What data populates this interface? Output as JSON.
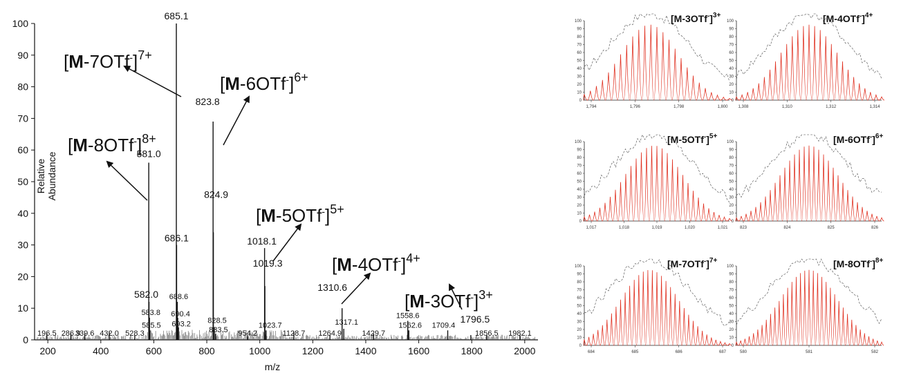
{
  "chart_data": [
    {
      "type": "line",
      "subtype": "mass-spectrum",
      "title": "",
      "xlabel": "m/z",
      "ylabel": "Relative Abundance",
      "xlim": [
        150,
        2050
      ],
      "ylim": [
        0,
        100
      ],
      "xticks": [
        200,
        400,
        600,
        800,
        1000,
        1200,
        1400,
        1600,
        1800,
        2000
      ],
      "yticks": [
        0,
        10,
        20,
        30,
        40,
        50,
        60,
        70,
        80,
        90,
        100
      ],
      "series": [
        {
          "peaks": [
            {
              "mz": 196.5,
              "intensity": 2,
              "label": "196.5"
            },
            {
              "mz": 286.9,
              "intensity": 2,
              "label": "286.9"
            },
            {
              "mz": 339.6,
              "intensity": 2,
              "label": "339.6"
            },
            {
              "mz": 432.0,
              "intensity": 2.5,
              "label": "432.0"
            },
            {
              "mz": 528.3,
              "intensity": 1.5,
              "label": "528.3"
            },
            {
              "mz": 581.0,
              "intensity": 56,
              "label": "581.0"
            },
            {
              "mz": 582.0,
              "intensity": 12,
              "label": "582.0"
            },
            {
              "mz": 583.8,
              "intensity": 7,
              "label": "583.8"
            },
            {
              "mz": 585.5,
              "intensity": 3,
              "label": "585.5"
            },
            {
              "mz": 685.1,
              "intensity": 100,
              "label": "685.1"
            },
            {
              "mz": 686.1,
              "intensity": 30,
              "label": "686.1"
            },
            {
              "mz": 688.6,
              "intensity": 12,
              "label": "688.6"
            },
            {
              "mz": 690.4,
              "intensity": 7,
              "label": "690.4"
            },
            {
              "mz": 693.2,
              "intensity": 4,
              "label": "693.2"
            },
            {
              "mz": 823.8,
              "intensity": 69,
              "label": "823.8"
            },
            {
              "mz": 824.9,
              "intensity": 34,
              "label": "824.9"
            },
            {
              "mz": 828.5,
              "intensity": 4,
              "label": "828.5"
            },
            {
              "mz": 833.5,
              "intensity": 2,
              "label": "833.5"
            },
            {
              "mz": 954.2,
              "intensity": 1.5,
              "label": "954.2"
            },
            {
              "mz": 1018.1,
              "intensity": 29,
              "label": "1018.1"
            },
            {
              "mz": 1019.3,
              "intensity": 17,
              "label": "1019.3"
            },
            {
              "mz": 1023.7,
              "intensity": 3,
              "label": "1023.7"
            },
            {
              "mz": 1128.7,
              "intensity": 2.5,
              "label": "1128.7"
            },
            {
              "mz": 1264.9,
              "intensity": 1.5,
              "label": "1264.9"
            },
            {
              "mz": 1310.6,
              "intensity": 10,
              "label": "1310.6"
            },
            {
              "mz": 1317.1,
              "intensity": 3.5,
              "label": "1317.1"
            },
            {
              "mz": 1429.7,
              "intensity": 2,
              "label": "1429.7"
            },
            {
              "mz": 1558.6,
              "intensity": 6,
              "label": "1558.6"
            },
            {
              "mz": 1562.6,
              "intensity": 3,
              "label": "1562.6"
            },
            {
              "mz": 1709.4,
              "intensity": 3,
              "label": "1709.4"
            },
            {
              "mz": 1796.5,
              "intensity": 1.5,
              "label": "1796.5"
            },
            {
              "mz": 1856.5,
              "intensity": 1.5,
              "label": "1856.5"
            },
            {
              "mz": 1982.1,
              "intensity": 1.5,
              "label": "1982.1"
            }
          ]
        }
      ],
      "annotations": [
        {
          "text_main": "[",
          "bold": "M",
          "rest": "-7OTf",
          "sup_minus": "-",
          "close": "]",
          "charge": "7+"
        },
        {
          "text_main": "[",
          "bold": "M",
          "rest": "-6OTf",
          "sup_minus": "-",
          "close": "]",
          "charge": "6+"
        },
        {
          "text_main": "[",
          "bold": "M",
          "rest": "-8OTf",
          "sup_minus": "-",
          "close": "]",
          "charge": "8+"
        },
        {
          "text_main": "[",
          "bold": "M",
          "rest": "-5OTf",
          "sup_minus": "-",
          "close": "]",
          "charge": "5+"
        },
        {
          "text_main": "[",
          "bold": "M",
          "rest": "-4OTf",
          "sup_minus": "-",
          "close": "]",
          "charge": "4+"
        },
        {
          "text_main": "[",
          "bold": "M",
          "rest": "-3OTf",
          "sup_minus": "-",
          "close": "]",
          "charge": "3+"
        }
      ],
      "colors": {
        "spectrum": "#111111",
        "arrow": "#111111"
      }
    },
    {
      "type": "line",
      "subtype": "isotope-patterns",
      "panels": [
        {
          "label": "[M-3OTf-]",
          "label_base": "[M-3OTf",
          "label_minus": "-",
          "label_close": "]",
          "charge": "3+",
          "xticks": [
            "1,794",
            "1,796",
            "1,798",
            "1,800"
          ],
          "center": 0.45,
          "ylim": [
            0,
            100
          ]
        },
        {
          "label": "[M-4OTf-]",
          "label_base": "[M-4OTf",
          "label_minus": "-",
          "label_close": "]",
          "charge": "4+",
          "xticks": [
            "1,308",
            "1,310",
            "1,312",
            "1,314"
          ],
          "center": 0.5,
          "ylim": [
            0,
            100
          ]
        },
        {
          "label": "[M-5OTf-]",
          "label_base": "[M-5OTf",
          "label_minus": "-",
          "label_close": "]",
          "charge": "5+",
          "xticks": [
            "1,017",
            "1,018",
            "1,019",
            "1,020",
            "1,021"
          ],
          "center": 0.48,
          "ylim": [
            0,
            100
          ]
        },
        {
          "label": "[M-6OTf-]",
          "label_base": "[M-6OTf",
          "label_minus": "-",
          "label_close": "]",
          "charge": "6+",
          "xticks": [
            "823",
            "824",
            "825",
            "826"
          ],
          "center": 0.5,
          "ylim": [
            0,
            100
          ]
        },
        {
          "label": "[M-7OTf-]",
          "label_base": "[M-7OTf",
          "label_minus": "-",
          "label_close": "]",
          "charge": "7+",
          "xticks": [
            "684",
            "685",
            "686",
            "687"
          ],
          "center": 0.45,
          "ylim": [
            0,
            100
          ]
        },
        {
          "label": "[M-8OTf-]",
          "label_base": "[M-8OTf",
          "label_minus": "-",
          "label_close": "]",
          "charge": "8+",
          "xticks": [
            "580",
            "581",
            "582"
          ],
          "center": 0.5,
          "ylim": [
            0,
            100
          ]
        }
      ],
      "yticks": [
        0,
        10,
        20,
        30,
        40,
        50,
        60,
        70,
        80,
        90,
        100
      ],
      "colors": {
        "simulated": "#e03020",
        "experimental": "#444444"
      }
    }
  ]
}
